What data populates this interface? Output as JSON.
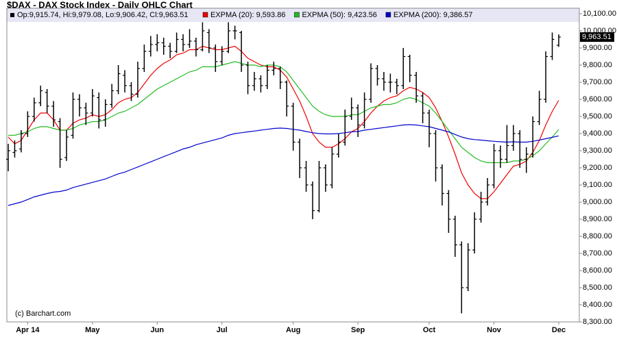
{
  "chart_data": {
    "type": "ohlc",
    "title": "$DAX - DAX Stock Index - Daily OHLC Chart",
    "ohlc_label": "Op:9,915.74, Hi:9,979.08, Lo:9,906.42, Cl:9,963.51",
    "credit": "(c) Barchart.com",
    "last_price_label": "9,963.51",
    "bar_color": "#000000",
    "grid": false,
    "categories": [
      null,
      null,
      null,
      "Apr 14",
      null,
      null,
      null,
      null,
      null,
      null,
      null,
      null,
      null,
      "May",
      null,
      null,
      null,
      null,
      null,
      null,
      null,
      null,
      null,
      "Jun",
      null,
      null,
      null,
      null,
      null,
      null,
      null,
      null,
      null,
      "Jul",
      null,
      null,
      null,
      null,
      null,
      null,
      null,
      null,
      null,
      null,
      "Aug",
      null,
      null,
      null,
      null,
      null,
      null,
      null,
      null,
      null,
      "Sep",
      null,
      null,
      null,
      null,
      null,
      null,
      null,
      null,
      null,
      null,
      "Oct",
      null,
      null,
      null,
      null,
      null,
      null,
      null,
      null,
      null,
      "Nov",
      null,
      null,
      null,
      null,
      null,
      null,
      null,
      null,
      null,
      "Dec"
    ],
    "ohlc": [
      [
        9250,
        9340,
        9180,
        9300
      ],
      [
        9290,
        9360,
        9260,
        9300
      ],
      [
        9310,
        9420,
        9290,
        9400
      ],
      [
        9400,
        9530,
        9380,
        9500
      ],
      [
        9500,
        9610,
        9470,
        9580
      ],
      [
        9580,
        9680,
        9560,
        9650
      ],
      [
        9640,
        9660,
        9520,
        9560
      ],
      [
        9560,
        9590,
        9440,
        9480
      ],
      [
        9470,
        9490,
        9200,
        9250
      ],
      [
        9260,
        9420,
        9240,
        9380
      ],
      [
        9390,
        9640,
        9370,
        9600
      ],
      [
        9600,
        9630,
        9500,
        9550
      ],
      [
        9550,
        9580,
        9450,
        9520
      ],
      [
        9520,
        9660,
        9500,
        9620
      ],
      [
        9610,
        9640,
        9430,
        9480
      ],
      [
        9480,
        9600,
        9440,
        9570
      ],
      [
        9570,
        9690,
        9550,
        9650
      ],
      [
        9650,
        9800,
        9630,
        9750
      ],
      [
        9740,
        9770,
        9640,
        9680
      ],
      [
        9680,
        9700,
        9590,
        9630
      ],
      [
        9630,
        9820,
        9610,
        9780
      ],
      [
        9780,
        9920,
        9760,
        9880
      ],
      [
        9880,
        9970,
        9850,
        9920
      ],
      [
        9920,
        9980,
        9880,
        9930
      ],
      [
        9930,
        9960,
        9860,
        9910
      ],
      [
        9910,
        9930,
        9840,
        9880
      ],
      [
        9880,
        9990,
        9870,
        9950
      ],
      [
        9950,
        9980,
        9880,
        9920
      ],
      [
        9920,
        10010,
        9900,
        9940
      ],
      [
        9940,
        9960,
        9850,
        9890
      ],
      [
        9890,
        10050,
        9880,
        10000
      ],
      [
        9990,
        10010,
        9870,
        9900
      ],
      [
        9900,
        9920,
        9760,
        9820
      ],
      [
        9820,
        9910,
        9800,
        9880
      ],
      [
        9880,
        10050,
        9870,
        10000
      ],
      [
        10000,
        10030,
        9950,
        10000
      ],
      [
        9990,
        10000,
        9760,
        9800
      ],
      [
        9800,
        9820,
        9630,
        9680
      ],
      [
        9680,
        9760,
        9650,
        9720
      ],
      [
        9720,
        9740,
        9640,
        9680
      ],
      [
        9680,
        9800,
        9660,
        9770
      ],
      [
        9770,
        9820,
        9740,
        9780
      ],
      [
        9780,
        9790,
        9660,
        9700
      ],
      [
        9700,
        9710,
        9500,
        9560
      ],
      [
        9560,
        9580,
        9300,
        9350
      ],
      [
        9350,
        9370,
        9140,
        9200
      ],
      [
        9200,
        9240,
        9060,
        9100
      ],
      [
        9100,
        9120,
        8900,
        8950
      ],
      [
        8950,
        9240,
        8940,
        9200
      ],
      [
        9200,
        9220,
        9060,
        9100
      ],
      [
        9100,
        9320,
        9080,
        9280
      ],
      [
        9280,
        9400,
        9260,
        9350
      ],
      [
        9350,
        9540,
        9330,
        9500
      ],
      [
        9500,
        9610,
        9480,
        9550
      ],
      [
        9550,
        9570,
        9380,
        9450
      ],
      [
        9450,
        9640,
        9430,
        9600
      ],
      [
        9600,
        9810,
        9580,
        9780
      ],
      [
        9780,
        9800,
        9680,
        9720
      ],
      [
        9720,
        9760,
        9650,
        9700
      ],
      [
        9700,
        9750,
        9640,
        9700
      ],
      [
        9700,
        9720,
        9630,
        9680
      ],
      [
        9680,
        9900,
        9660,
        9850
      ],
      [
        9850,
        9860,
        9700,
        9740
      ],
      [
        9740,
        9760,
        9580,
        9620
      ],
      [
        9620,
        9640,
        9460,
        9520
      ],
      [
        9520,
        9540,
        9320,
        9400
      ],
      [
        9400,
        9420,
        9120,
        9200
      ],
      [
        9200,
        9220,
        8980,
        9050
      ],
      [
        9050,
        9070,
        8820,
        8900
      ],
      [
        8900,
        8920,
        8680,
        8750
      ],
      [
        8750,
        8770,
        8350,
        8500
      ],
      [
        8500,
        8760,
        8480,
        8720
      ],
      [
        8720,
        8940,
        8700,
        8900
      ],
      [
        8900,
        9060,
        8880,
        9000
      ],
      [
        9000,
        9140,
        8980,
        9100
      ],
      [
        9100,
        9340,
        9080,
        9300
      ],
      [
        9300,
        9330,
        9200,
        9250
      ],
      [
        9250,
        9450,
        9230,
        9330
      ],
      [
        9330,
        9450,
        9300,
        9400
      ],
      [
        9400,
        9420,
        9200,
        9250
      ],
      [
        9250,
        9320,
        9170,
        9280
      ],
      [
        9280,
        9500,
        9260,
        9470
      ],
      [
        9470,
        9650,
        9450,
        9600
      ],
      [
        9600,
        9880,
        9580,
        9850
      ],
      [
        9850,
        9990,
        9830,
        9950
      ],
      [
        9915.74,
        9979.08,
        9906.42,
        9963.51
      ]
    ],
    "series": [
      {
        "name": "EXPMA (20): 9,593.86",
        "color": "#ee0000",
        "values": [
          9380,
          9340,
          9360,
          9420,
          9480,
          9520,
          9520,
          9480,
          9420,
          9420,
          9460,
          9480,
          9490,
          9510,
          9500,
          9510,
          9540,
          9580,
          9600,
          9610,
          9640,
          9690,
          9740,
          9780,
          9810,
          9830,
          9860,
          9870,
          9890,
          9890,
          9910,
          9900,
          9890,
          9890,
          9900,
          9910,
          9880,
          9840,
          9820,
          9800,
          9790,
          9790,
          9770,
          9730,
          9660,
          9590,
          9500,
          9400,
          9350,
          9320,
          9320,
          9340,
          9370,
          9410,
          9430,
          9470,
          9520,
          9560,
          9590,
          9610,
          9620,
          9650,
          9670,
          9660,
          9640,
          9610,
          9550,
          9470,
          9380,
          9280,
          9170,
          9100,
          9050,
          9020,
          9020,
          9060,
          9110,
          9160,
          9210,
          9220,
          9240,
          9290,
          9360,
          9450,
          9530,
          9593.86
        ]
      },
      {
        "name": "EXPMA (50): 9,423.56",
        "color": "#22bb22",
        "values": [
          9390,
          9390,
          9400,
          9410,
          9430,
          9440,
          9440,
          9430,
          9420,
          9420,
          9430,
          9450,
          9460,
          9470,
          9470,
          9480,
          9500,
          9520,
          9530,
          9550,
          9570,
          9600,
          9630,
          9660,
          9680,
          9700,
          9720,
          9740,
          9760,
          9770,
          9790,
          9790,
          9790,
          9800,
          9810,
          9820,
          9810,
          9800,
          9800,
          9790,
          9800,
          9800,
          9790,
          9760,
          9710,
          9660,
          9610,
          9560,
          9530,
          9510,
          9500,
          9500,
          9500,
          9510,
          9510,
          9530,
          9550,
          9560,
          9570,
          9570,
          9580,
          9600,
          9610,
          9600,
          9580,
          9560,
          9520,
          9470,
          9420,
          9370,
          9320,
          9290,
          9260,
          9240,
          9230,
          9230,
          9230,
          9230,
          9240,
          9240,
          9250,
          9270,
          9300,
          9340,
          9380,
          9423.56
        ]
      },
      {
        "name": "EXPMA (200): 9,386.57",
        "color": "#0000cc",
        "values": [
          8980,
          8990,
          9000,
          9015,
          9030,
          9040,
          9050,
          9058,
          9062,
          9070,
          9085,
          9095,
          9105,
          9115,
          9125,
          9135,
          9150,
          9165,
          9175,
          9190,
          9205,
          9220,
          9235,
          9250,
          9265,
          9280,
          9295,
          9310,
          9320,
          9335,
          9345,
          9355,
          9365,
          9375,
          9390,
          9400,
          9405,
          9410,
          9415,
          9420,
          9425,
          9430,
          9432,
          9430,
          9425,
          9420,
          9412,
          9405,
          9400,
          9398,
          9398,
          9400,
          9405,
          9410,
          9412,
          9420,
          9425,
          9430,
          9435,
          9440,
          9445,
          9450,
          9452,
          9450,
          9445,
          9440,
          9430,
          9420,
          9410,
          9395,
          9380,
          9370,
          9365,
          9362,
          9358,
          9355,
          9352,
          9350,
          9352,
          9350,
          9350,
          9355,
          9362,
          9370,
          9378,
          9386.57
        ]
      }
    ],
    "ylim": [
      8300,
      10132
    ],
    "yticks": [
      {
        "value": 8300,
        "label": "8,300.00"
      },
      {
        "value": 8400,
        "label": "8,400.00"
      },
      {
        "value": 8500,
        "label": "8,500.00"
      },
      {
        "value": 8600,
        "label": "8,600.00"
      },
      {
        "value": 8700,
        "label": "8,700.00"
      },
      {
        "value": 8800,
        "label": "8,800.00"
      },
      {
        "value": 8900,
        "label": "8,900.00"
      },
      {
        "value": 9000,
        "label": "9,000.00"
      },
      {
        "value": 9100,
        "label": "9,100.00"
      },
      {
        "value": 9200,
        "label": "9,200.00"
      },
      {
        "value": 9300,
        "label": "9,300.00"
      },
      {
        "value": 9400,
        "label": "9,400.00"
      },
      {
        "value": 9500,
        "label": "9,500.00"
      },
      {
        "value": 9600,
        "label": "9,600.00"
      },
      {
        "value": 9700,
        "label": "9,700.00"
      },
      {
        "value": 9800,
        "label": "9,800.00"
      },
      {
        "value": 9900,
        "label": "9,900.00"
      },
      {
        "value": 10000,
        "label": "10,000.00"
      },
      {
        "value": 10100,
        "label": "10,100.00"
      }
    ]
  }
}
